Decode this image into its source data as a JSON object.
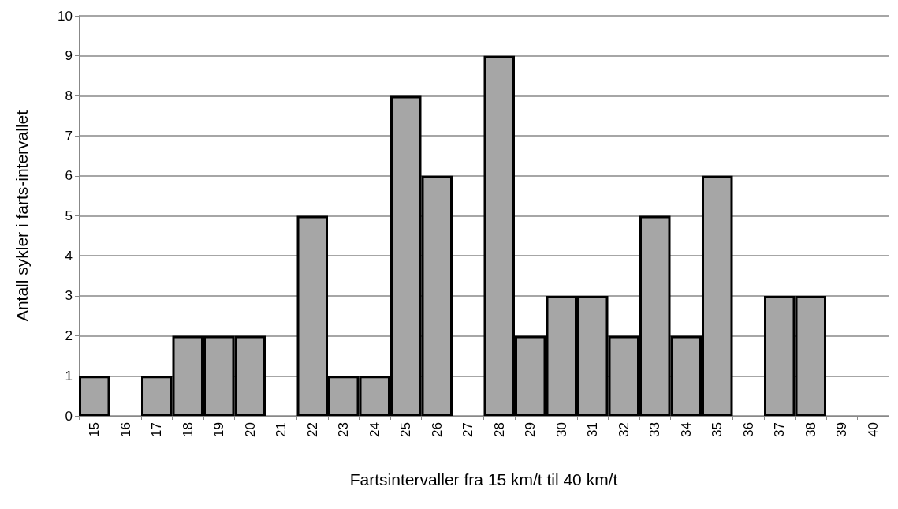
{
  "chart_data": {
    "type": "bar",
    "xlabel": "Fartsintervaller fra 15 km/t til 40 km/t",
    "ylabel": "Antall sykler i farts-intervallet",
    "categories": [
      "15",
      "16",
      "17",
      "18",
      "19",
      "20",
      "21",
      "22",
      "23",
      "24",
      "25",
      "26",
      "27",
      "28",
      "29",
      "30",
      "31",
      "32",
      "33",
      "34",
      "35",
      "36",
      "37",
      "38",
      "39",
      "40"
    ],
    "values": [
      1,
      0,
      1,
      2,
      2,
      2,
      0,
      5,
      1,
      1,
      8,
      6,
      0,
      9,
      2,
      3,
      3,
      2,
      5,
      2,
      6,
      0,
      3,
      3,
      0,
      0
    ],
    "color": "#a6a6a6",
    "ylim": [
      0,
      10
    ],
    "yticks": [
      0,
      1,
      2,
      3,
      4,
      5,
      6,
      7,
      8,
      9,
      10
    ],
    "grid": "y"
  }
}
